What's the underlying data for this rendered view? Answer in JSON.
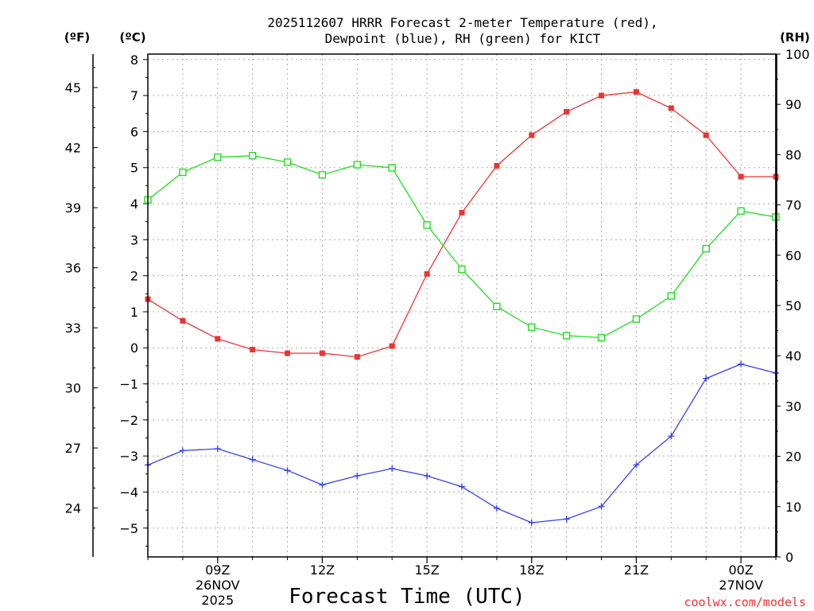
{
  "chart_data": {
    "type": "line",
    "title_line1": "2025112607 HRRR Forecast 2-meter Temperature (red),",
    "title_line2": "Dewpoint (blue), RH (green) for KICT",
    "unit_f": "(ºF)",
    "unit_c": "(ºC)",
    "unit_rh": "(RH)",
    "xlabel": "Forecast Time (UTC)",
    "credit": "coolwx.com/models",
    "x_hours": [
      7,
      8,
      9,
      10,
      11,
      12,
      13,
      14,
      15,
      16,
      17,
      18,
      19,
      20,
      21,
      22,
      23,
      24,
      25
    ],
    "x_range": [
      7,
      25
    ],
    "x_ticks": [
      {
        "hour": 9,
        "label": "09Z",
        "sub1": "26NOV",
        "sub2": "2025"
      },
      {
        "hour": 12,
        "label": "12Z",
        "sub1": "",
        "sub2": ""
      },
      {
        "hour": 15,
        "label": "15Z",
        "sub1": "",
        "sub2": ""
      },
      {
        "hour": 18,
        "label": "18Z",
        "sub1": "",
        "sub2": ""
      },
      {
        "hour": 21,
        "label": "21Z",
        "sub1": "",
        "sub2": ""
      },
      {
        "hour": 24,
        "label": "00Z",
        "sub1": "27NOV",
        "sub2": ""
      }
    ],
    "c_range": [
      -5.8,
      8.15
    ],
    "c_ticks": [
      -5,
      -4,
      -3,
      -2,
      -1,
      0,
      1,
      2,
      3,
      4,
      5,
      6,
      7,
      8
    ],
    "f_ticks": [
      24,
      27,
      30,
      33,
      36,
      39,
      42,
      45
    ],
    "rh_range": [
      0,
      100
    ],
    "rh_ticks": [
      0,
      10,
      20,
      30,
      40,
      50,
      60,
      70,
      80,
      90,
      100
    ],
    "series": [
      {
        "name": "Temperature",
        "axis": "c",
        "color": "#ee3333",
        "marker": "filled-square",
        "values": [
          1.35,
          0.75,
          0.25,
          -0.05,
          -0.15,
          -0.15,
          -0.25,
          0.05,
          2.05,
          3.75,
          5.05,
          5.9,
          6.55,
          7.0,
          7.1,
          6.65,
          5.9,
          4.75,
          4.75
        ]
      },
      {
        "name": "Dewpoint",
        "axis": "c",
        "color": "#3344ee",
        "marker": "plus",
        "values": [
          -3.25,
          -2.85,
          -2.8,
          -3.1,
          -3.4,
          -3.8,
          -3.55,
          -3.35,
          -3.55,
          -3.85,
          -4.45,
          -4.85,
          -4.75,
          -4.4,
          -3.25,
          -2.45,
          -0.85,
          -0.45,
          -0.7
        ]
      },
      {
        "name": "RH",
        "axis": "rh",
        "color": "#22dd22",
        "marker": "open-square",
        "values": [
          71,
          76.5,
          79.5,
          79.8,
          78.5,
          76,
          78,
          77.4,
          66,
          57.2,
          49.8,
          45.7,
          44,
          43.6,
          47.3,
          51.9,
          61.3,
          68.8,
          67.6
        ]
      }
    ]
  }
}
